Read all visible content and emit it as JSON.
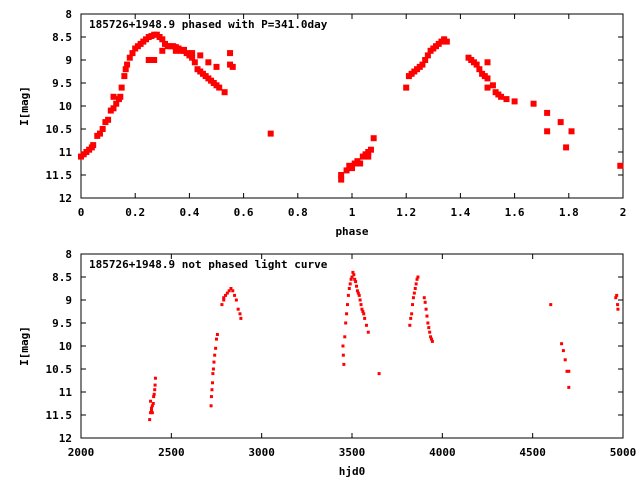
{
  "chart_data": [
    {
      "type": "scatter",
      "title": "185726+1948.9 phased with P=341.0day",
      "xlabel": "phase",
      "ylabel": "I[mag]",
      "xlim": [
        0,
        2
      ],
      "ylim": [
        12,
        8
      ],
      "y_inverted": true,
      "grid": false,
      "x_ticks": [
        "0",
        "0.2",
        "0.4",
        "0.6",
        "0.8",
        "1",
        "1.2",
        "1.4",
        "1.6",
        "1.8",
        "2"
      ],
      "y_ticks": [
        "8",
        "8.5",
        "9",
        "9.5",
        "10",
        "10.5",
        "11",
        "11.5",
        "12"
      ],
      "marker_color": "#ff0000",
      "points": [
        [
          0.0,
          11.1
        ],
        [
          0.01,
          11.05
        ],
        [
          0.02,
          11.0
        ],
        [
          0.03,
          10.95
        ],
        [
          0.04,
          10.9
        ],
        [
          0.045,
          10.85
        ],
        [
          0.06,
          10.65
        ],
        [
          0.07,
          10.6
        ],
        [
          0.08,
          10.5
        ],
        [
          0.09,
          10.35
        ],
        [
          0.1,
          10.3
        ],
        [
          0.11,
          10.1
        ],
        [
          0.12,
          10.05
        ],
        [
          0.13,
          9.95
        ],
        [
          0.14,
          9.85
        ],
        [
          0.145,
          9.8
        ],
        [
          0.12,
          9.8
        ],
        [
          0.15,
          9.6
        ],
        [
          0.16,
          9.35
        ],
        [
          0.165,
          9.2
        ],
        [
          0.17,
          9.1
        ],
        [
          0.18,
          8.95
        ],
        [
          0.19,
          8.85
        ],
        [
          0.2,
          8.75
        ],
        [
          0.21,
          8.7
        ],
        [
          0.22,
          8.65
        ],
        [
          0.23,
          8.6
        ],
        [
          0.24,
          8.55
        ],
        [
          0.25,
          8.5
        ],
        [
          0.26,
          8.48
        ],
        [
          0.27,
          8.45
        ],
        [
          0.28,
          8.45
        ],
        [
          0.29,
          8.5
        ],
        [
          0.3,
          8.55
        ],
        [
          0.31,
          8.65
        ],
        [
          0.32,
          8.7
        ],
        [
          0.33,
          8.7
        ],
        [
          0.34,
          8.7
        ],
        [
          0.35,
          8.72
        ],
        [
          0.36,
          8.75
        ],
        [
          0.37,
          8.8
        ],
        [
          0.38,
          8.78
        ],
        [
          0.39,
          8.85
        ],
        [
          0.4,
          8.9
        ],
        [
          0.41,
          8.95
        ],
        [
          0.42,
          9.05
        ],
        [
          0.43,
          9.2
        ],
        [
          0.44,
          9.25
        ],
        [
          0.45,
          9.3
        ],
        [
          0.46,
          9.35
        ],
        [
          0.47,
          9.4
        ],
        [
          0.48,
          9.45
        ],
        [
          0.49,
          9.5
        ],
        [
          0.5,
          9.55
        ],
        [
          0.51,
          9.6
        ],
        [
          0.25,
          9.0
        ],
        [
          0.27,
          9.0
        ],
        [
          0.3,
          8.8
        ],
        [
          0.35,
          8.8
        ],
        [
          0.38,
          8.8
        ],
        [
          0.41,
          8.85
        ],
        [
          0.44,
          8.9
        ],
        [
          0.47,
          9.05
        ],
        [
          0.5,
          9.15
        ],
        [
          0.53,
          9.7
        ],
        [
          0.55,
          8.85
        ],
        [
          0.56,
          9.15
        ],
        [
          0.55,
          9.1
        ],
        [
          0.7,
          10.6
        ],
        [
          0.96,
          11.6
        ],
        [
          0.96,
          11.5
        ],
        [
          0.98,
          11.4
        ],
        [
          0.99,
          11.3
        ],
        [
          1.0,
          11.35
        ],
        [
          1.01,
          11.25
        ],
        [
          1.02,
          11.2
        ],
        [
          1.03,
          11.25
        ],
        [
          1.04,
          11.1
        ],
        [
          1.05,
          11.05
        ],
        [
          1.06,
          11.0
        ],
        [
          1.06,
          11.1
        ],
        [
          1.07,
          10.95
        ],
        [
          1.08,
          10.7
        ],
        [
          1.2,
          9.6
        ],
        [
          1.21,
          9.35
        ],
        [
          1.22,
          9.3
        ],
        [
          1.23,
          9.25
        ],
        [
          1.24,
          9.2
        ],
        [
          1.25,
          9.15
        ],
        [
          1.26,
          9.1
        ],
        [
          1.27,
          9.0
        ],
        [
          1.28,
          8.9
        ],
        [
          1.29,
          8.8
        ],
        [
          1.3,
          8.75
        ],
        [
          1.31,
          8.7
        ],
        [
          1.32,
          8.65
        ],
        [
          1.33,
          8.6
        ],
        [
          1.34,
          8.55
        ],
        [
          1.35,
          8.6
        ],
        [
          1.43,
          8.95
        ],
        [
          1.44,
          9.0
        ],
        [
          1.45,
          9.05
        ],
        [
          1.46,
          9.1
        ],
        [
          1.47,
          9.2
        ],
        [
          1.48,
          9.3
        ],
        [
          1.49,
          9.35
        ],
        [
          1.5,
          9.4
        ],
        [
          1.5,
          9.05
        ],
        [
          1.5,
          9.6
        ],
        [
          1.52,
          9.55
        ],
        [
          1.53,
          9.7
        ],
        [
          1.54,
          9.75
        ],
        [
          1.55,
          9.8
        ],
        [
          1.57,
          9.85
        ],
        [
          1.6,
          9.9
        ],
        [
          1.67,
          9.95
        ],
        [
          1.72,
          10.15
        ],
        [
          1.72,
          10.55
        ],
        [
          1.77,
          10.35
        ],
        [
          1.79,
          10.9
        ],
        [
          1.81,
          10.55
        ],
        [
          1.99,
          11.3
        ]
      ]
    },
    {
      "type": "scatter",
      "title": "185726+1948.9 not phased light curve",
      "xlabel": "hjd0",
      "ylabel": "I[mag]",
      "xlim": [
        2000,
        5000
      ],
      "ylim": [
        12,
        8
      ],
      "y_inverted": true,
      "grid": false,
      "x_ticks": [
        "2000",
        "2500",
        "3000",
        "3500",
        "4000",
        "4500",
        "5000"
      ],
      "y_ticks": [
        "8",
        "8.5",
        "9",
        "9.5",
        "10",
        "10.5",
        "11",
        "11.5",
        "12"
      ],
      "marker_color": "#ff0000",
      "points": [
        [
          2380,
          11.6
        ],
        [
          2385,
          11.45
        ],
        [
          2390,
          11.35
        ],
        [
          2395,
          11.3
        ],
        [
          2400,
          11.25
        ],
        [
          2402,
          11.1
        ],
        [
          2405,
          11.05
        ],
        [
          2408,
          10.95
        ],
        [
          2410,
          10.85
        ],
        [
          2412,
          10.7
        ],
        [
          2385,
          11.2
        ],
        [
          2390,
          11.4
        ],
        [
          2395,
          11.45
        ],
        [
          2720,
          11.3
        ],
        [
          2722,
          11.1
        ],
        [
          2725,
          10.95
        ],
        [
          2728,
          10.8
        ],
        [
          2730,
          10.6
        ],
        [
          2733,
          10.5
        ],
        [
          2736,
          10.35
        ],
        [
          2740,
          10.2
        ],
        [
          2745,
          10.05
        ],
        [
          2750,
          9.85
        ],
        [
          2755,
          9.75
        ],
        [
          2780,
          9.1
        ],
        [
          2790,
          8.95
        ],
        [
          2800,
          8.9
        ],
        [
          2810,
          8.85
        ],
        [
          2820,
          8.8
        ],
        [
          2830,
          8.75
        ],
        [
          2840,
          8.8
        ],
        [
          2850,
          8.9
        ],
        [
          2860,
          9.0
        ],
        [
          2870,
          9.2
        ],
        [
          2880,
          9.3
        ],
        [
          2885,
          9.4
        ],
        [
          2790,
          9.0
        ],
        [
          3450,
          10.0
        ],
        [
          3452,
          10.2
        ],
        [
          3455,
          10.4
        ],
        [
          3460,
          9.8
        ],
        [
          3465,
          9.5
        ],
        [
          3470,
          9.3
        ],
        [
          3475,
          9.1
        ],
        [
          3480,
          8.9
        ],
        [
          3485,
          8.75
        ],
        [
          3490,
          8.65
        ],
        [
          3495,
          8.55
        ],
        [
          3500,
          8.5
        ],
        [
          3505,
          8.4
        ],
        [
          3510,
          8.45
        ],
        [
          3515,
          8.55
        ],
        [
          3520,
          8.6
        ],
        [
          3525,
          8.7
        ],
        [
          3530,
          8.8
        ],
        [
          3535,
          8.85
        ],
        [
          3540,
          8.9
        ],
        [
          3545,
          9.0
        ],
        [
          3550,
          9.1
        ],
        [
          3555,
          9.2
        ],
        [
          3560,
          9.25
        ],
        [
          3565,
          9.3
        ],
        [
          3570,
          9.4
        ],
        [
          3580,
          9.55
        ],
        [
          3590,
          9.7
        ],
        [
          3650,
          10.6
        ],
        [
          3820,
          9.55
        ],
        [
          3825,
          9.4
        ],
        [
          3830,
          9.3
        ],
        [
          3835,
          9.1
        ],
        [
          3840,
          8.95
        ],
        [
          3845,
          8.85
        ],
        [
          3850,
          8.75
        ],
        [
          3855,
          8.65
        ],
        [
          3860,
          8.55
        ],
        [
          3865,
          8.5
        ],
        [
          3900,
          8.95
        ],
        [
          3905,
          9.05
        ],
        [
          3910,
          9.2
        ],
        [
          3915,
          9.35
        ],
        [
          3920,
          9.5
        ],
        [
          3925,
          9.6
        ],
        [
          3930,
          9.7
        ],
        [
          3935,
          9.8
        ],
        [
          3940,
          9.85
        ],
        [
          3945,
          9.9
        ],
        [
          4600,
          9.1
        ],
        [
          4660,
          9.95
        ],
        [
          4670,
          10.1
        ],
        [
          4680,
          10.3
        ],
        [
          4690,
          10.55
        ],
        [
          4700,
          10.55
        ],
        [
          4700,
          10.9
        ],
        [
          4960,
          8.95
        ],
        [
          4965,
          8.9
        ],
        [
          4970,
          9.1
        ],
        [
          4972,
          9.2
        ]
      ]
    }
  ]
}
